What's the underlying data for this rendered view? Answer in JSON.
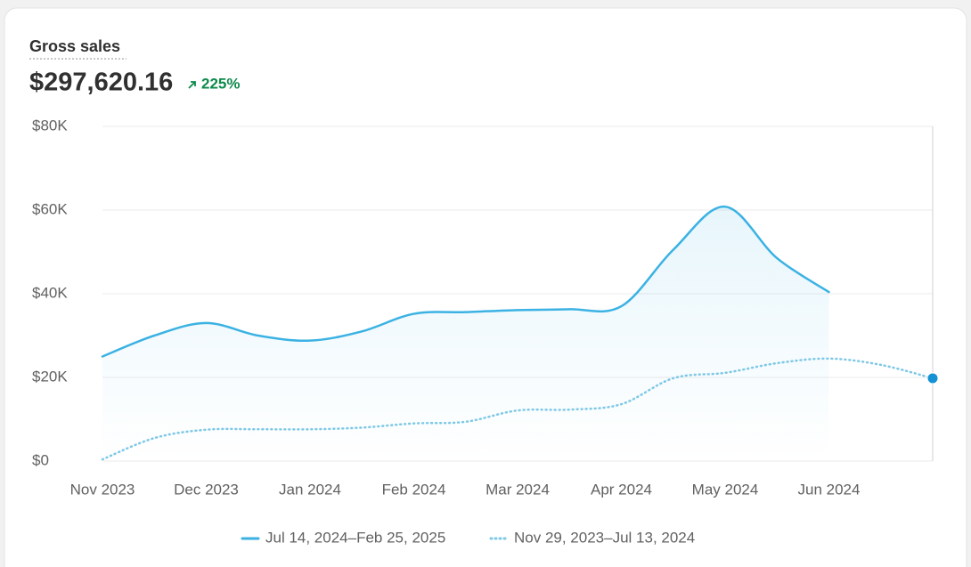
{
  "header": {
    "title": "Gross sales",
    "total": "$297,620.16",
    "change": "225%"
  },
  "chart_data": {
    "type": "line",
    "categories": [
      "Nov 2023",
      null,
      "Dec 2023",
      null,
      "Jan 2024",
      null,
      "Feb 2024",
      null,
      "Mar 2024",
      null,
      "Apr 2024",
      null,
      "May 2024",
      null,
      "Jun 2024",
      null,
      null
    ],
    "series": [
      {
        "name": "Jul 14, 2024–Feb 25, 2025",
        "color": "#3bb2e3",
        "style": "solid",
        "values": [
          25000,
          30000,
          33000,
          30000,
          28800,
          31000,
          35200,
          35600,
          36100,
          36300,
          37000,
          50500,
          60800,
          48500,
          40400,
          null,
          null
        ]
      },
      {
        "name": "Nov 29, 2023–Jul 13, 2024",
        "color": "#7ec8e6",
        "style": "dotted",
        "values": [
          400,
          5500,
          7500,
          7600,
          7600,
          8000,
          9000,
          9400,
          12100,
          12300,
          13600,
          19800,
          21100,
          23400,
          24500,
          23000,
          19800
        ]
      }
    ],
    "ylim": [
      0,
      80000
    ],
    "yticks": [
      {
        "value": 0,
        "label": "$0"
      },
      {
        "value": 20000,
        "label": "$20K"
      },
      {
        "value": 40000,
        "label": "$40K"
      },
      {
        "value": 60000,
        "label": "$60K"
      },
      {
        "value": 80000,
        "label": "$80K"
      }
    ],
    "grid": true
  }
}
